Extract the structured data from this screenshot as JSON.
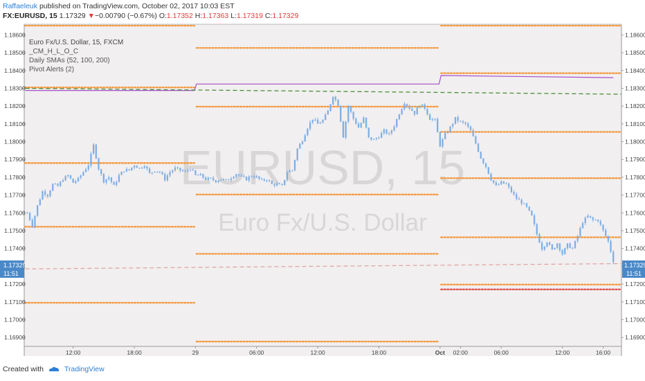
{
  "header": {
    "author": "Raffaeleuk",
    "published_text": "published on TradingView.com, October 02, 2017 10:03 EST",
    "symbol": "FX:EURUSD, 15",
    "last": "1.17329",
    "change_arrow": "▼",
    "change": "−0.00790 (−0.67%)",
    "o_label": "O:",
    "o_value": "1.17352",
    "h_label": "H:",
    "h_value": "1.17363",
    "l_label": "L:",
    "l_value": "1.17319",
    "c_label": "C:",
    "c_value": "1.17329"
  },
  "legend": {
    "title": "Euro Fx/U.S. Dollar, 15, FXCM",
    "items": [
      "_CM_H_L_O_C",
      "Daily SMAs (52, 100, 200)",
      "Pivot Alerts (2)"
    ]
  },
  "watermark": {
    "symbol": "EURUSD, 15",
    "name": "Euro Fx/U.S. Dollar"
  },
  "price_tag": {
    "price": "1.17329",
    "countdown": "11:51"
  },
  "footer": {
    "created_with": "Created with",
    "brand": "TradingView"
  },
  "colors": {
    "candle": "#7faee3",
    "pivot": "#f49a41",
    "pivot_red": "#e0544f",
    "sma_purple": "#a64ec9",
    "sma_green": "#4a8f36",
    "sma_pink": "#e0a0a0",
    "background": "#f1eff0",
    "accent": "#2b7fd8"
  },
  "chart_data": {
    "type": "candlestick",
    "y_axis_ticks": [
      "1.18600",
      "1.18500",
      "1.18400",
      "1.18300",
      "1.18200",
      "1.18100",
      "1.18000",
      "1.17900",
      "1.17800",
      "1.17700",
      "1.17600",
      "1.17500",
      "1.17400",
      "1.17300",
      "1.17200",
      "1.17100",
      "1.17000",
      "1.16900"
    ],
    "ylim": [
      1.1685,
      1.1866
    ],
    "x_axis_ticks": [
      "12:00",
      "18:00",
      "29",
      "06:00",
      "12:00",
      "18:00",
      "Oct",
      "02:00",
      "06:00",
      "12:00",
      "16:00"
    ],
    "x_tick_units": [
      12,
      18,
      24,
      30,
      36,
      42,
      48,
      50,
      54,
      60,
      64
    ],
    "xlim": [
      7.2,
      65.8
    ],
    "close_path": [
      [
        7.5,
        1.176
      ],
      [
        8.0,
        1.1753
      ],
      [
        8.5,
        1.1764
      ],
      [
        9.0,
        1.1772
      ],
      [
        9.5,
        1.177
      ],
      [
        10.0,
        1.1776
      ],
      [
        10.5,
        1.1775
      ],
      [
        11.0,
        1.1779
      ],
      [
        11.5,
        1.1781
      ],
      [
        12.0,
        1.1777
      ],
      [
        12.5,
        1.1779
      ],
      [
        13.0,
        1.1783
      ],
      [
        13.5,
        1.1787
      ],
      [
        14.0,
        1.1798
      ],
      [
        14.5,
        1.1785
      ],
      [
        15.0,
        1.1778
      ],
      [
        15.5,
        1.178
      ],
      [
        16.0,
        1.1775
      ],
      [
        16.5,
        1.1781
      ],
      [
        17.0,
        1.1784
      ],
      [
        17.5,
        1.1784
      ],
      [
        18.0,
        1.1787
      ],
      [
        18.5,
        1.1785
      ],
      [
        19.0,
        1.1787
      ],
      [
        19.5,
        1.1782
      ],
      [
        20.0,
        1.1784
      ],
      [
        20.5,
        1.1783
      ],
      [
        21.0,
        1.1779
      ],
      [
        21.5,
        1.1783
      ],
      [
        22.0,
        1.1785
      ],
      [
        22.5,
        1.1784
      ],
      [
        23.0,
        1.1783
      ],
      [
        23.5,
        1.1785
      ],
      [
        24.0,
        1.1781
      ],
      [
        24.5,
        1.1781
      ],
      [
        25.0,
        1.1779
      ],
      [
        25.5,
        1.1779
      ],
      [
        26.0,
        1.1778
      ],
      [
        26.5,
        1.1779
      ],
      [
        27.0,
        1.1778
      ],
      [
        27.5,
        1.178
      ],
      [
        28.0,
        1.1782
      ],
      [
        28.5,
        1.178
      ],
      [
        29.0,
        1.1779
      ],
      [
        29.5,
        1.1781
      ],
      [
        30.0,
        1.178
      ],
      [
        30.5,
        1.1778
      ],
      [
        31.0,
        1.1779
      ],
      [
        31.5,
        1.1776
      ],
      [
        32.0,
        1.1776
      ],
      [
        32.5,
        1.1775
      ],
      [
        33.0,
        1.1783
      ],
      [
        33.5,
        1.1784
      ],
      [
        34.0,
        1.1796
      ],
      [
        34.5,
        1.1801
      ],
      [
        35.0,
        1.1808
      ],
      [
        35.5,
        1.1813
      ],
      [
        36.0,
        1.181
      ],
      [
        36.5,
        1.1812
      ],
      [
        37.0,
        1.1817
      ],
      [
        37.5,
        1.1826
      ],
      [
        38.0,
        1.1821
      ],
      [
        38.5,
        1.1803
      ],
      [
        39.0,
        1.182
      ],
      [
        39.5,
        1.1813
      ],
      [
        40.0,
        1.1808
      ],
      [
        40.5,
        1.1813
      ],
      [
        41.0,
        1.1802
      ],
      [
        41.5,
        1.1801
      ],
      [
        42.0,
        1.1803
      ],
      [
        42.5,
        1.1806
      ],
      [
        43.0,
        1.1804
      ],
      [
        43.5,
        1.1809
      ],
      [
        44.0,
        1.1816
      ],
      [
        44.5,
        1.1822
      ],
      [
        45.0,
        1.1819
      ],
      [
        45.5,
        1.1816
      ],
      [
        46.0,
        1.1821
      ],
      [
        46.5,
        1.1819
      ],
      [
        47.0,
        1.1813
      ],
      [
        47.5,
        1.1812
      ],
      [
        48.0,
        1.1798
      ],
      [
        48.5,
        1.1804
      ],
      [
        49.0,
        1.1808
      ],
      [
        49.5,
        1.1813
      ],
      [
        50.0,
        1.1811
      ],
      [
        50.5,
        1.181
      ],
      [
        51.0,
        1.1806
      ],
      [
        51.5,
        1.1799
      ],
      [
        52.0,
        1.1791
      ],
      [
        52.5,
        1.1786
      ],
      [
        53.0,
        1.1779
      ],
      [
        53.5,
        1.1775
      ],
      [
        54.0,
        1.1777
      ],
      [
        54.5,
        1.1776
      ],
      [
        55.0,
        1.1772
      ],
      [
        55.5,
        1.1768
      ],
      [
        56.0,
        1.1766
      ],
      [
        56.5,
        1.1763
      ],
      [
        57.0,
        1.1758
      ],
      [
        57.5,
        1.1748
      ],
      [
        58.0,
        1.174
      ],
      [
        58.5,
        1.1744
      ],
      [
        59.0,
        1.1739
      ],
      [
        59.5,
        1.1743
      ],
      [
        60.0,
        1.1737
      ],
      [
        60.5,
        1.1742
      ],
      [
        61.0,
        1.174
      ],
      [
        61.5,
        1.1747
      ],
      [
        62.0,
        1.1755
      ],
      [
        62.5,
        1.1758
      ],
      [
        63.0,
        1.1756
      ],
      [
        63.5,
        1.1756
      ],
      [
        64.0,
        1.175
      ],
      [
        64.5,
        1.1744
      ],
      [
        65.0,
        1.1733
      ]
    ],
    "pivot_levels": [
      {
        "x0": 7.3,
        "x1": 23.9,
        "y": 1.18652
      },
      {
        "x0": 7.3,
        "x1": 23.9,
        "y": 1.18305
      },
      {
        "x0": 7.3,
        "x1": 23.9,
        "y": 1.1788
      },
      {
        "x0": 7.3,
        "x1": 23.9,
        "y": 1.17522
      },
      {
        "x0": 7.3,
        "x1": 23.9,
        "y": 1.17095
      },
      {
        "x0": 24.1,
        "x1": 47.9,
        "y": 1.18527
      },
      {
        "x0": 24.1,
        "x1": 47.9,
        "y": 1.18197
      },
      {
        "x0": 24.1,
        "x1": 47.9,
        "y": 1.17703
      },
      {
        "x0": 24.1,
        "x1": 47.9,
        "y": 1.1737
      },
      {
        "x0": 24.1,
        "x1": 47.9,
        "y": 1.16877
      },
      {
        "x0": 48.1,
        "x1": 65.7,
        "y": 1.18652
      },
      {
        "x0": 48.1,
        "x1": 65.7,
        "y": 1.18385
      },
      {
        "x0": 48.1,
        "x1": 65.7,
        "y": 1.18055
      },
      {
        "x0": 48.1,
        "x1": 65.7,
        "y": 1.17795
      },
      {
        "x0": 48.1,
        "x1": 65.7,
        "y": 1.17463
      },
      {
        "x0": 48.1,
        "x1": 65.7,
        "y": 1.17197
      }
    ],
    "pivot_red_level": {
      "x0": 48.1,
      "x1": 65.7,
      "y": 1.1717
    },
    "sma_purple": [
      [
        7.3,
        1.18288
      ],
      [
        23.9,
        1.18288
      ],
      [
        24.1,
        1.18324
      ],
      [
        47.9,
        1.18324
      ],
      [
        48.1,
        1.18372
      ],
      [
        65.0,
        1.1836
      ]
    ],
    "sma_green": [
      [
        7.3,
        1.183
      ],
      [
        65.8,
        1.18267
      ]
    ],
    "sma_pink": [
      [
        7.3,
        1.17285
      ],
      [
        65.8,
        1.17315
      ]
    ]
  }
}
